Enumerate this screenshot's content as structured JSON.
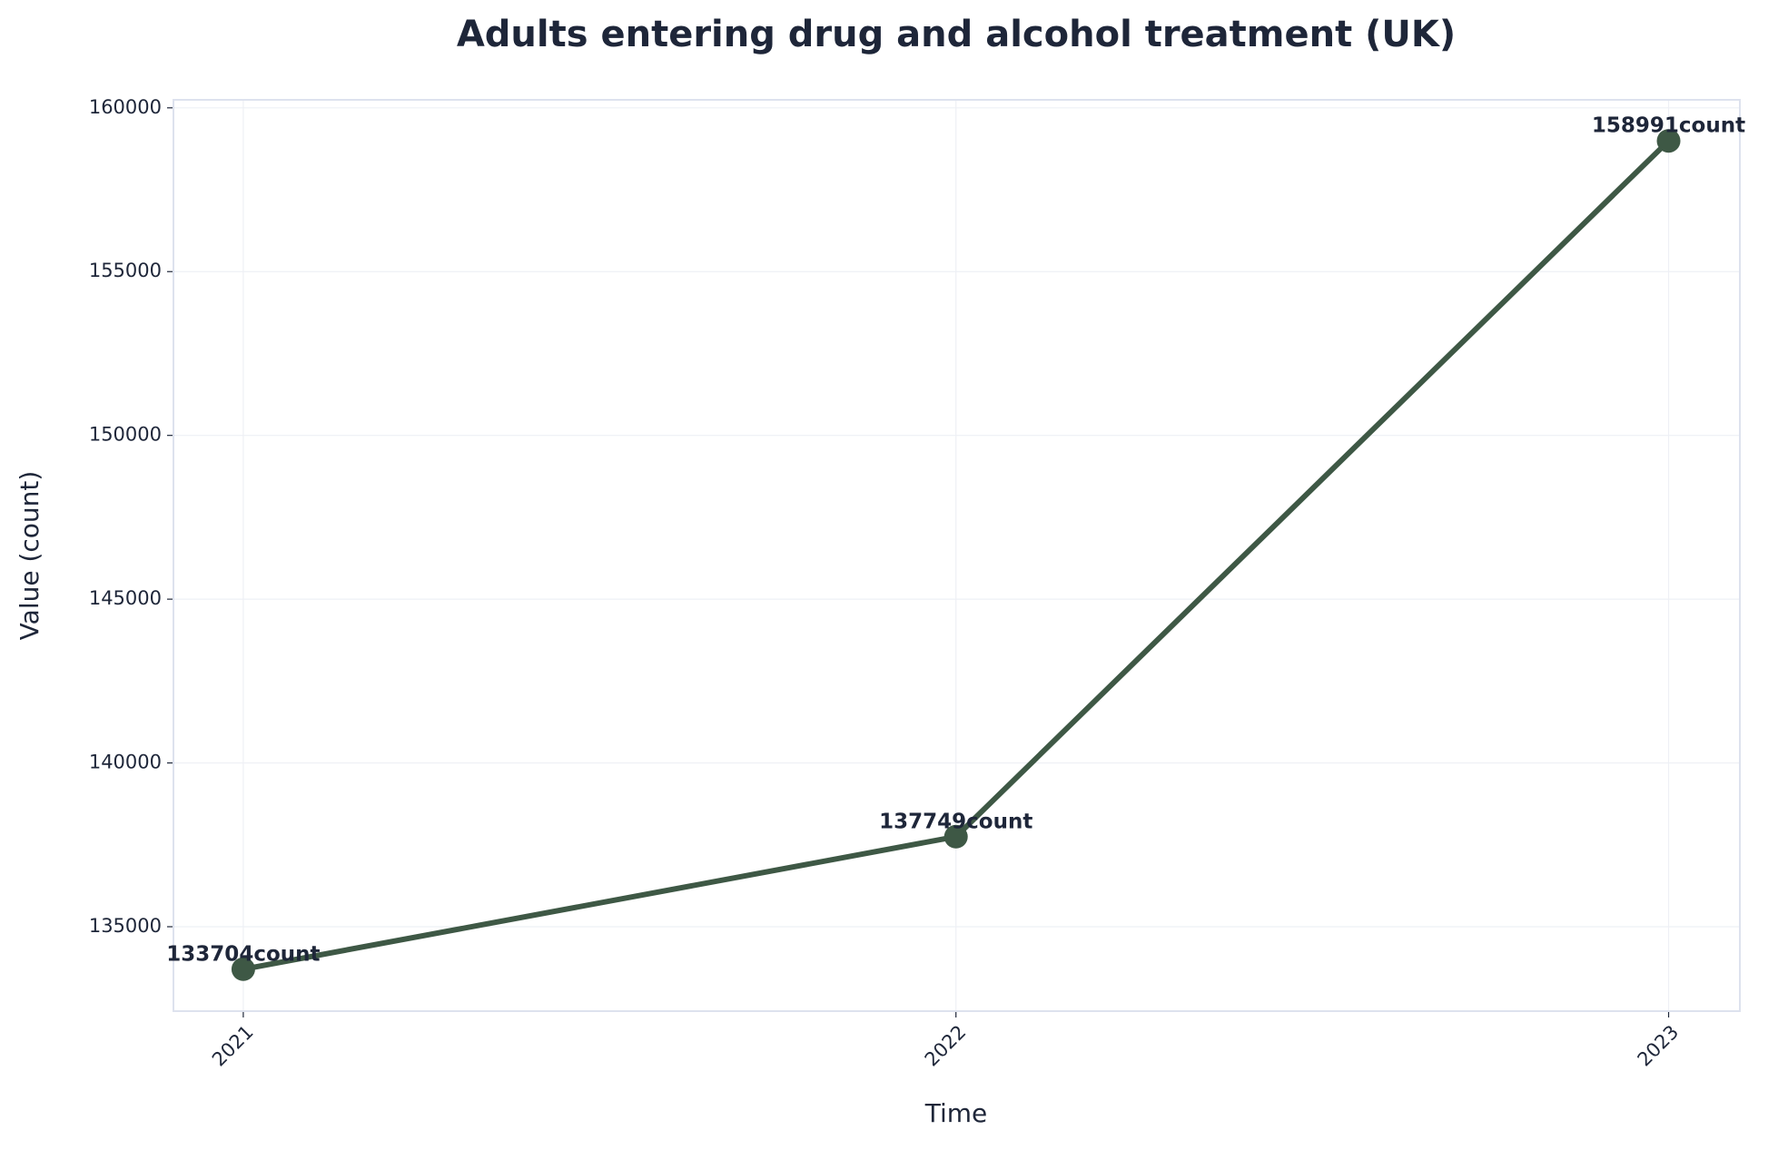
{
  "chart_data": {
    "type": "line",
    "title": "Adults entering drug and alcohol treatment (UK)",
    "x_label": "Time",
    "y_label": "Value (count)",
    "x": [
      2021,
      2022,
      2023
    ],
    "series": [
      {
        "color": "#3e5845",
        "values": [
          133704,
          137749,
          158991
        ],
        "value_labels": [
          "133704count",
          "137749count",
          "158991count"
        ]
      }
    ],
    "xlim": [
      2020.902,
      2023.1
    ],
    "xticks": [
      2021,
      2022,
      2023
    ],
    "ylim": [
      132423,
      160244
    ],
    "yticks": [
      135000,
      140000,
      145000,
      150000,
      155000,
      160000
    ],
    "grid": true
  }
}
